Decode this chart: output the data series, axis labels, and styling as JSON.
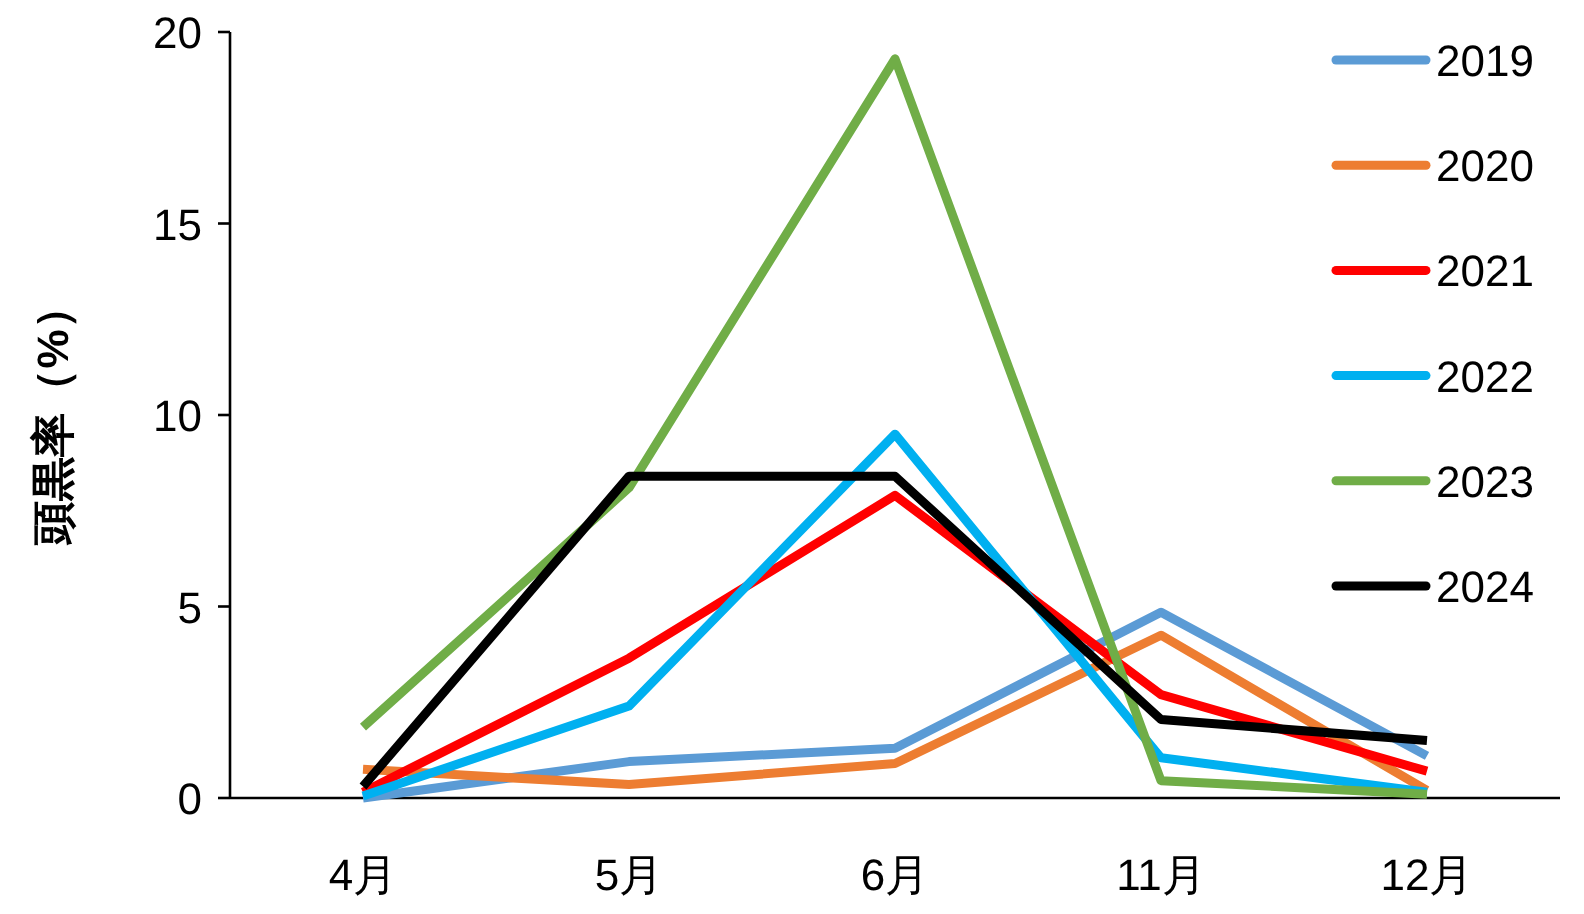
{
  "chart_data": {
    "type": "line",
    "ylabel": "頭黒率（%）",
    "categories": [
      "4月",
      "5月",
      "6月",
      "11月",
      "12月"
    ],
    "ylim": [
      0,
      20
    ],
    "yticks": [
      0,
      5,
      10,
      15,
      20
    ],
    "grid": false,
    "legend": "top right",
    "marker": "none",
    "line_style": "solid",
    "series": [
      {
        "name": "2019",
        "color": "#5b9bd5",
        "values": [
          0,
          0.95,
          1.3,
          4.85,
          1.1
        ]
      },
      {
        "name": "2020",
        "color": "#ed7d31",
        "values": [
          0.75,
          0.35,
          0.9,
          4.25,
          0.2
        ]
      },
      {
        "name": "2021",
        "color": "#ff0000",
        "values": [
          0.15,
          3.65,
          7.9,
          2.7,
          0.7
        ]
      },
      {
        "name": "2022",
        "color": "#00b0f0",
        "values": [
          0.05,
          2.4,
          9.5,
          1.05,
          0.15
        ]
      },
      {
        "name": "2023",
        "color": "#70ad47",
        "values": [
          1.85,
          8.1,
          19.3,
          0.45,
          0.1
        ]
      },
      {
        "name": "2024",
        "color": "#000000",
        "values": [
          0.3,
          8.4,
          8.4,
          2.05,
          1.5
        ]
      }
    ]
  }
}
